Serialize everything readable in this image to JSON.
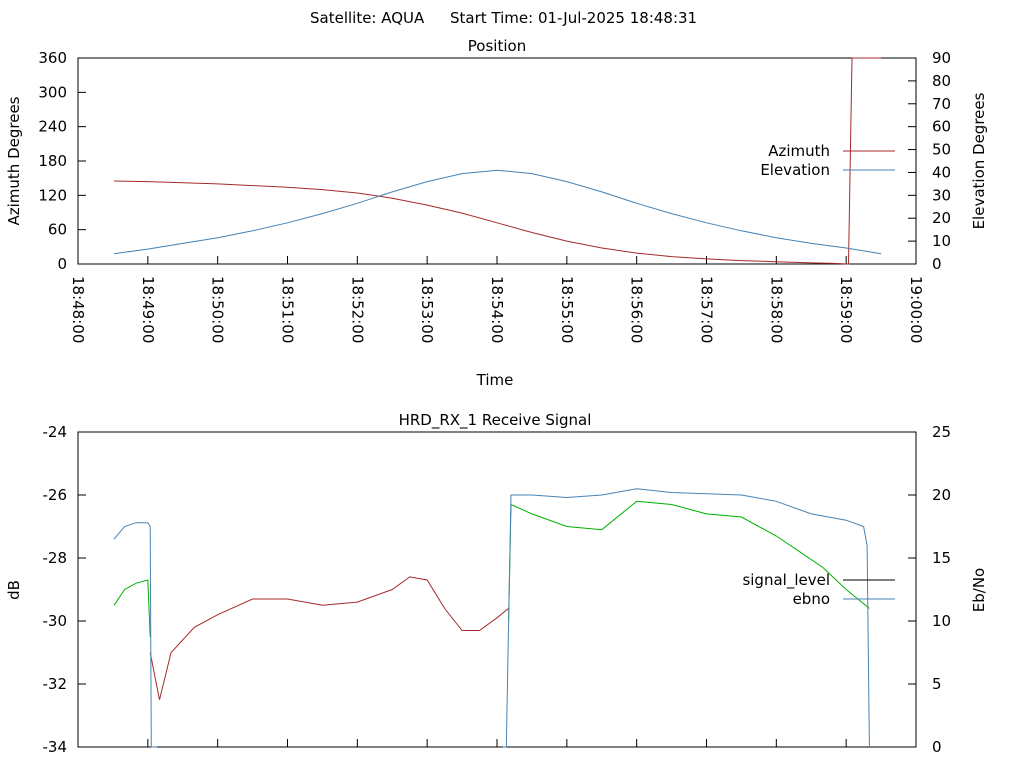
{
  "header": {
    "satellite": "Satellite: AQUA",
    "start_time": "Start Time: 01-Jul-2025 18:48:31"
  },
  "chart_data": [
    {
      "type": "line",
      "title": "Position",
      "xlabel": "Time",
      "ylabel": "Azimuth Degrees",
      "y2label": "Elevation Degrees",
      "xlim": [
        "18:48:00",
        "19:00:00"
      ],
      "ylim": [
        0,
        360
      ],
      "y2lim": [
        0,
        90
      ],
      "x_ticks": [
        "18:48:00",
        "18:49:00",
        "18:50:00",
        "18:51:00",
        "18:52:00",
        "18:53:00",
        "18:54:00",
        "18:55:00",
        "18:56:00",
        "18:57:00",
        "18:58:00",
        "18:59:00",
        "19:00:00"
      ],
      "y_ticks": [
        "0",
        "60",
        "120",
        "180",
        "240",
        "300",
        "360"
      ],
      "y2_ticks": [
        "0",
        "10",
        "20",
        "30",
        "40",
        "50",
        "60",
        "70",
        "80",
        "90"
      ],
      "legend_position": "right",
      "grid": false,
      "series": [
        {
          "name": "Azimuth",
          "axis": "left",
          "color": "#a52a2a",
          "x": [
            "18:48:31",
            "18:49:00",
            "18:49:30",
            "18:50:00",
            "18:50:30",
            "18:51:00",
            "18:51:30",
            "18:52:00",
            "18:52:30",
            "18:53:00",
            "18:53:30",
            "18:54:00",
            "18:54:30",
            "18:55:00",
            "18:55:30",
            "18:56:00",
            "18:56:30",
            "18:57:00",
            "18:57:30",
            "18:58:00",
            "18:58:30",
            "18:58:50",
            "18:59:02",
            "18:59:05",
            "18:59:30"
          ],
          "y": [
            145,
            144,
            142,
            140,
            137,
            134,
            130,
            124,
            115,
            103,
            89,
            72,
            55,
            40,
            28,
            19,
            13,
            9,
            6,
            4,
            2,
            1,
            0,
            360,
            360
          ]
        },
        {
          "name": "Elevation",
          "axis": "right",
          "color": "#4682b4",
          "x": [
            "18:48:31",
            "18:49:00",
            "18:49:30",
            "18:50:00",
            "18:50:30",
            "18:51:00",
            "18:51:30",
            "18:52:00",
            "18:52:30",
            "18:53:00",
            "18:53:30",
            "18:54:00",
            "18:54:30",
            "18:55:00",
            "18:55:30",
            "18:56:00",
            "18:56:30",
            "18:57:00",
            "18:57:30",
            "18:58:00",
            "18:58:30",
            "18:59:00",
            "18:59:30"
          ],
          "y": [
            4.5,
            6.5,
            9,
            11.5,
            14.5,
            18,
            22,
            26.5,
            31.5,
            36,
            39.5,
            41,
            39.5,
            36,
            31.5,
            26.5,
            22,
            18,
            14.5,
            11.5,
            9,
            7,
            4.5
          ]
        }
      ]
    },
    {
      "type": "line",
      "title": "HRD_RX_1 Receive Signal",
      "xlabel": "",
      "ylabel": "dB",
      "y2label": "Eb/No",
      "xlim": [
        "18:48:00",
        "19:00:00"
      ],
      "ylim": [
        -34,
        -24
      ],
      "y2lim": [
        0,
        25
      ],
      "y_ticks": [
        "-34",
        "-32",
        "-30",
        "-28",
        "-26",
        "-24"
      ],
      "y2_ticks": [
        "0",
        "5",
        "10",
        "15",
        "20",
        "25"
      ],
      "legend_position": "right",
      "grid": false,
      "series": [
        {
          "name": "signal_level",
          "axis": "left",
          "colors": [
            "#00b000",
            "#a52a2a",
            "#00b000"
          ],
          "segments": [
            {
              "x": [
                "18:48:31",
                "18:48:40",
                "18:48:50",
                "18:49:00",
                "18:49:02"
              ],
              "y": [
                -29.5,
                -29.0,
                -28.8,
                -28.7,
                -30.5
              ]
            },
            {
              "x": [
                "18:49:02",
                "18:49:10",
                "18:49:20",
                "18:49:40",
                "18:50:00",
                "18:50:30",
                "18:51:00",
                "18:51:30",
                "18:52:00",
                "18:52:30",
                "18:52:45",
                "18:53:00",
                "18:53:15",
                "18:53:30",
                "18:53:45",
                "18:54:00",
                "18:54:10"
              ],
              "y": [
                -31.0,
                -32.5,
                -31.0,
                -30.2,
                -29.8,
                -29.3,
                -29.3,
                -29.5,
                -29.4,
                -29.0,
                -28.6,
                -28.7,
                -29.6,
                -30.3,
                -30.3,
                -29.9,
                -29.6
              ]
            },
            {
              "x": [
                "18:54:10",
                "18:54:12",
                "18:54:30",
                "18:55:00",
                "18:55:30",
                "18:56:00",
                "18:56:30",
                "18:57:00",
                "18:57:30",
                "18:58:00",
                "18:58:20",
                "18:58:40",
                "18:59:00",
                "18:59:10",
                "18:59:20"
              ],
              "y": [
                -30.0,
                -26.3,
                -26.6,
                -27.0,
                -27.1,
                -26.2,
                -26.3,
                -26.6,
                -26.7,
                -27.3,
                -27.8,
                -28.3,
                -29.0,
                -29.3,
                -29.6
              ]
            }
          ]
        },
        {
          "name": "ebno",
          "axis": "right",
          "color": "#4682b4",
          "segments": [
            {
              "x": [
                "18:48:31",
                "18:48:40",
                "18:48:50",
                "18:49:00",
                "18:49:02",
                "18:49:03",
                "18:49:08"
              ],
              "y": [
                16.5,
                17.5,
                17.8,
                17.8,
                17.5,
                0,
                0
              ]
            },
            {
              "x": [
                "18:54:05",
                "18:54:08",
                "18:54:12",
                "18:54:30",
                "18:55:00",
                "18:55:30",
                "18:56:00",
                "18:56:30",
                "18:57:00",
                "18:57:30",
                "18:58:00",
                "18:58:30",
                "18:59:00",
                "18:59:15",
                "18:59:18",
                "18:59:20"
              ],
              "y": [
                0,
                0,
                20,
                20,
                19.8,
                20,
                20.5,
                20.2,
                20.1,
                20.0,
                19.5,
                18.5,
                18.0,
                17.5,
                16,
                0
              ]
            }
          ]
        }
      ]
    }
  ]
}
